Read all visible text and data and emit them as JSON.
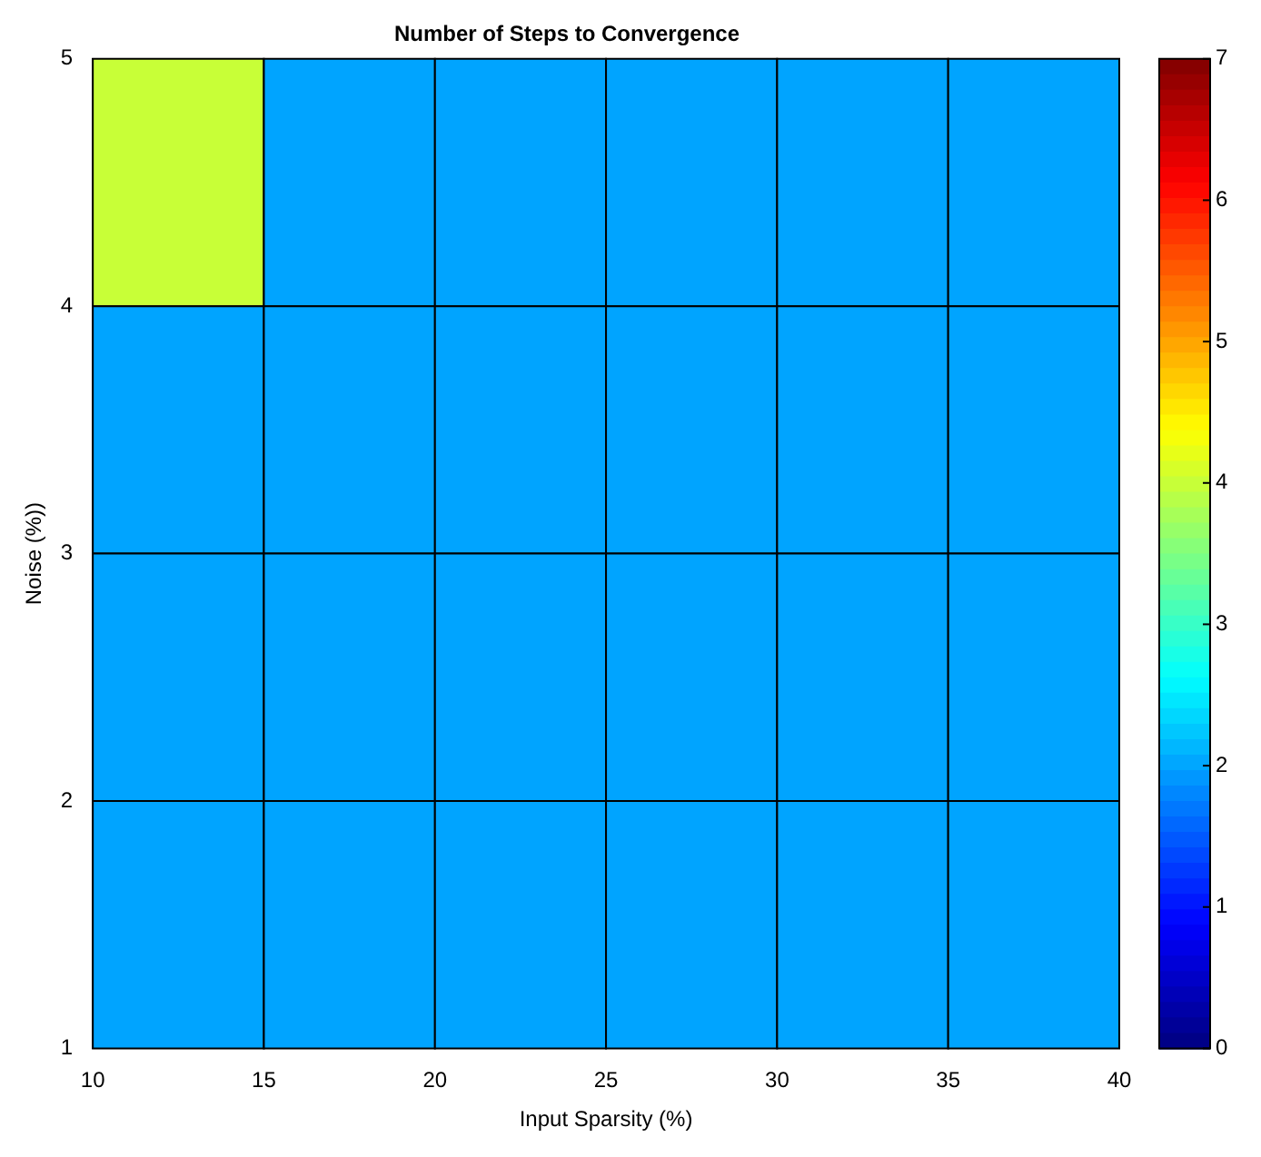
{
  "chart_data": {
    "type": "heatmap",
    "title": "Number of Steps to Convergence",
    "xlabel": "Input Sparsity (%)",
    "ylabel": "Noise (%))",
    "cells": [
      [
        4,
        2,
        2,
        2,
        2,
        2
      ],
      [
        2,
        2,
        2,
        2,
        2,
        2
      ],
      [
        2,
        2,
        2,
        2,
        2,
        2
      ],
      [
        2,
        2,
        2,
        2,
        2,
        2
      ]
    ],
    "xlim": [
      10,
      40
    ],
    "xticks": [
      10,
      15,
      20,
      25,
      30,
      35,
      40
    ],
    "ylim": [
      1,
      5
    ],
    "yticks": [
      1,
      2,
      3,
      4,
      5
    ],
    "clim": [
      0,
      7
    ],
    "cticks": [
      0,
      1,
      2,
      3,
      4,
      5,
      6,
      7
    ]
  }
}
